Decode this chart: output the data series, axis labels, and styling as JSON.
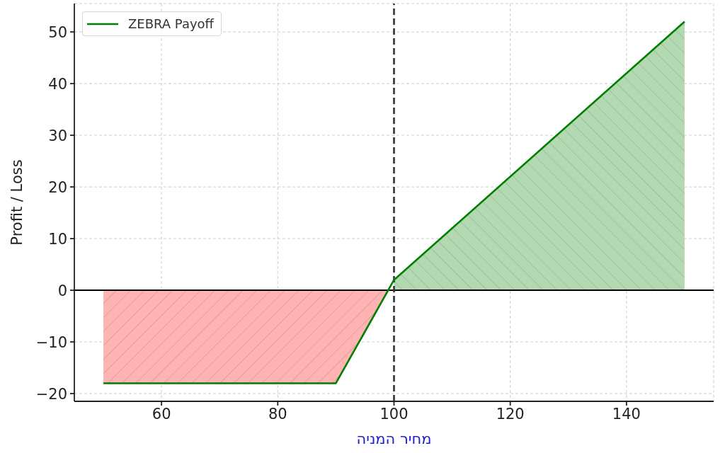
{
  "chart_data": {
    "type": "line",
    "xlabel": "מחיר המניה",
    "ylabel": "Profit / Loss",
    "xlim": [
      45,
      155
    ],
    "xticks": [
      60,
      80,
      100,
      120,
      140
    ],
    "ylim": [
      -21.5,
      55.5
    ],
    "yticks": [
      {
        "value": -20,
        "label": "−20"
      },
      {
        "value": -10,
        "label": "−10"
      },
      0,
      10,
      20,
      30,
      40,
      50
    ],
    "series": [
      {
        "type": "area",
        "color": "#ffb3b3",
        "x": [
          50,
          90,
          99
        ],
        "values": [
          -18,
          -18,
          0
        ]
      },
      {
        "type": "area",
        "color": "#b3d9b3",
        "x": [
          100,
          150
        ],
        "values": [
          2,
          52
        ]
      },
      {
        "name": "ZEBRA Payoff",
        "color": "#008000",
        "x": [
          50,
          90,
          100,
          150
        ],
        "values": [
          -18,
          -18,
          2,
          52
        ]
      }
    ],
    "ref_lines": [
      {
        "axis": "y",
        "value": 0,
        "color": "#000000"
      },
      {
        "axis": "x",
        "value": 100,
        "color": "#333333",
        "line_style": "dashed"
      }
    ],
    "grid": true,
    "legend": "top left"
  }
}
